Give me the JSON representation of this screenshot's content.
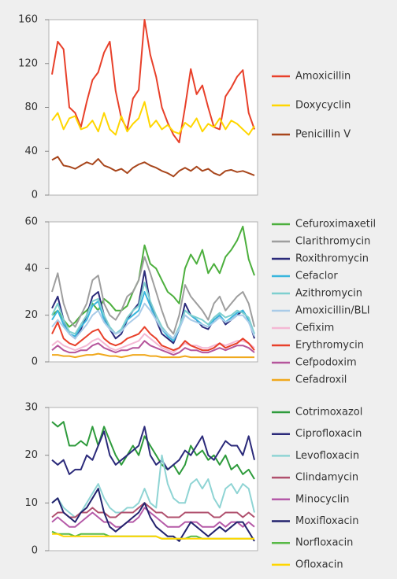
{
  "chart_data": [
    {
      "type": "line",
      "legend": "right",
      "categories": [
        null,
        null,
        null,
        null,
        null,
        null,
        null,
        null,
        null,
        null,
        null,
        null,
        null,
        null,
        null,
        null,
        null,
        null,
        null,
        null,
        null,
        null,
        null,
        null,
        null,
        null,
        null,
        null,
        null,
        null,
        null,
        null,
        null,
        null,
        null,
        null
      ],
      "ylim": [
        0,
        160
      ],
      "yticks": [
        0,
        40,
        80,
        120,
        160
      ],
      "series": [
        {
          "name": "Amoxicillin",
          "color": "#e8402a",
          "values": [
            110,
            140,
            133,
            80,
            75,
            62,
            85,
            105,
            112,
            130,
            140,
            95,
            70,
            60,
            88,
            96,
            160,
            128,
            108,
            80,
            66,
            55,
            48,
            80,
            115,
            92,
            100,
            80,
            62,
            60,
            90,
            98,
            108,
            114,
            75,
            60
          ]
        },
        {
          "name": "Doxycyclin",
          "color": "#ffd600",
          "values": [
            68,
            75,
            60,
            70,
            72,
            60,
            62,
            68,
            58,
            75,
            60,
            55,
            72,
            58,
            65,
            70,
            85,
            62,
            68,
            60,
            64,
            58,
            56,
            66,
            62,
            70,
            58,
            65,
            62,
            70,
            60,
            68,
            65,
            60,
            55,
            63
          ]
        },
        {
          "name": "Penicillin V",
          "color": "#a8461c",
          "values": [
            32,
            35,
            27,
            26,
            24,
            27,
            30,
            28,
            33,
            27,
            25,
            22,
            24,
            20,
            25,
            28,
            30,
            27,
            25,
            22,
            20,
            17,
            22,
            25,
            22,
            26,
            22,
            24,
            20,
            18,
            22,
            23,
            21,
            22,
            20,
            18
          ]
        }
      ]
    },
    {
      "type": "line",
      "legend": "right",
      "categories": [
        null,
        null,
        null,
        null,
        null,
        null,
        null,
        null,
        null,
        null,
        null,
        null,
        null,
        null,
        null,
        null,
        null,
        null,
        null,
        null,
        null,
        null,
        null,
        null,
        null,
        null,
        null,
        null,
        null,
        null,
        null,
        null,
        null,
        null,
        null,
        null
      ],
      "ylim": [
        0,
        60
      ],
      "yticks": [
        0,
        20,
        40,
        60
      ],
      "series": [
        {
          "name": "Cefuroximaxetil",
          "color": "#4caf3d",
          "values": [
            20,
            22,
            18,
            15,
            17,
            20,
            22,
            25,
            22,
            27,
            25,
            22,
            22,
            24,
            30,
            35,
            50,
            42,
            40,
            35,
            30,
            28,
            25,
            40,
            46,
            42,
            48,
            38,
            42,
            38,
            45,
            48,
            52,
            58,
            44,
            37
          ]
        },
        {
          "name": "Clarithromycin",
          "color": "#9e9e9e",
          "values": [
            30,
            38,
            25,
            18,
            15,
            20,
            25,
            35,
            37,
            25,
            20,
            18,
            22,
            28,
            30,
            35,
            45,
            38,
            30,
            22,
            15,
            12,
            20,
            33,
            28,
            25,
            22,
            18,
            25,
            28,
            22,
            25,
            28,
            30,
            25,
            15
          ]
        },
        {
          "name": "Roxithromycin",
          "color": "#2b2a7a",
          "values": [
            23,
            28,
            18,
            12,
            10,
            14,
            20,
            28,
            30,
            20,
            14,
            10,
            12,
            18,
            22,
            25,
            39,
            25,
            18,
            12,
            10,
            8,
            14,
            25,
            20,
            18,
            15,
            14,
            18,
            20,
            16,
            18,
            20,
            22,
            18,
            10
          ]
        },
        {
          "name": "Cefaclor",
          "color": "#39b6dd",
          "values": [
            18,
            22,
            16,
            12,
            11,
            15,
            18,
            24,
            26,
            18,
            14,
            12,
            14,
            18,
            20,
            22,
            30,
            24,
            18,
            14,
            11,
            9,
            14,
            22,
            20,
            18,
            16,
            15,
            18,
            20,
            17,
            19,
            21,
            22,
            18,
            12
          ]
        },
        {
          "name": "Azithromycin",
          "color": "#7ecfcf",
          "values": [
            20,
            25,
            18,
            13,
            12,
            16,
            20,
            26,
            27,
            20,
            15,
            12,
            14,
            19,
            22,
            24,
            34,
            26,
            20,
            15,
            12,
            10,
            15,
            22,
            20,
            19,
            18,
            16,
            19,
            21,
            19,
            20,
            22,
            21,
            19,
            12
          ]
        },
        {
          "name": "Amoxicillin/BLI",
          "color": "#a9cbe8",
          "values": [
            15,
            18,
            15,
            12,
            10,
            13,
            16,
            20,
            22,
            17,
            14,
            12,
            13,
            16,
            18,
            20,
            25,
            22,
            18,
            14,
            12,
            10,
            14,
            20,
            18,
            17,
            16,
            15,
            17,
            19,
            17,
            18,
            20,
            20,
            17,
            11
          ]
        },
        {
          "name": "Cefixim",
          "color": "#f4b8d4",
          "values": [
            7,
            9,
            7,
            6,
            5,
            6,
            7,
            9,
            10,
            8,
            6,
            5,
            6,
            7,
            8,
            9,
            12,
            10,
            8,
            6,
            5,
            4,
            6,
            8,
            7,
            7,
            6,
            6,
            7,
            8,
            7,
            8,
            9,
            9,
            8,
            6
          ]
        },
        {
          "name": "Erythromycin",
          "color": "#e8402a",
          "values": [
            12,
            17,
            10,
            8,
            7,
            9,
            11,
            13,
            14,
            10,
            8,
            7,
            8,
            10,
            11,
            12,
            15,
            12,
            10,
            7,
            6,
            5,
            6,
            9,
            7,
            6,
            5,
            5,
            6,
            8,
            6,
            7,
            8,
            10,
            8,
            5
          ]
        },
        {
          "name": "Cefpodoxim",
          "color": "#b5559b",
          "values": [
            5,
            7,
            5,
            4,
            4,
            5,
            5,
            7,
            8,
            6,
            5,
            4,
            5,
            5,
            6,
            6,
            9,
            7,
            6,
            5,
            4,
            3,
            4,
            6,
            5,
            5,
            4,
            4,
            5,
            6,
            5,
            6,
            7,
            7,
            6,
            4
          ]
        },
        {
          "name": "Cefadroxil",
          "color": "#f0a81c",
          "values": [
            3,
            3,
            2.5,
            2.5,
            2,
            2.5,
            3,
            3,
            3.5,
            3,
            2.5,
            2.5,
            2,
            2.5,
            3,
            3,
            3,
            2.5,
            2.5,
            2,
            2,
            2,
            2,
            2.5,
            2,
            2,
            2,
            2,
            2,
            2,
            2,
            2,
            2,
            2,
            2,
            2
          ]
        }
      ]
    },
    {
      "type": "line",
      "legend": "right",
      "categories": [
        null,
        null,
        null,
        null,
        null,
        null,
        null,
        null,
        null,
        null,
        null,
        null,
        null,
        null,
        null,
        null,
        null,
        null,
        null,
        null,
        null,
        null,
        null,
        null,
        null,
        null,
        null,
        null,
        null,
        null,
        null,
        null,
        null,
        null,
        null,
        null
      ],
      "ylim": [
        0,
        30
      ],
      "yticks": [
        0,
        10,
        20,
        30
      ],
      "series": [
        {
          "name": "Cotrimoxazol",
          "color": "#2e9b3c",
          "values": [
            27,
            26,
            27,
            22,
            22,
            23,
            22,
            26,
            22,
            26,
            23,
            20,
            18,
            20,
            22,
            20,
            24,
            22,
            20,
            18,
            17,
            18,
            16,
            18,
            22,
            20,
            21,
            19,
            20,
            18,
            20,
            17,
            18,
            16,
            17,
            15
          ]
        },
        {
          "name": "Ciprofloxacin",
          "color": "#2b2a7a",
          "values": [
            19,
            18,
            19,
            16,
            17,
            17,
            20,
            19,
            22,
            25,
            20,
            18,
            19,
            20,
            21,
            22,
            26,
            20,
            18,
            19,
            17,
            18,
            19,
            21,
            20,
            22,
            24,
            20,
            19,
            21,
            23,
            22,
            22,
            20,
            24,
            19
          ]
        },
        {
          "name": "Levofloxacin",
          "color": "#8fd4d4",
          "values": [
            10,
            11,
            9,
            8,
            7,
            8,
            10,
            12,
            14,
            11,
            9,
            8,
            8,
            9,
            9,
            10,
            13,
            10,
            9,
            20,
            14,
            11,
            10,
            10,
            14,
            15,
            13,
            15,
            11,
            9,
            13,
            14,
            12,
            14,
            13,
            8
          ]
        },
        {
          "name": "Clindamycin",
          "color": "#b0506e",
          "values": [
            7,
            8,
            8,
            7,
            7,
            8,
            8,
            9,
            8,
            8,
            7,
            7,
            8,
            8,
            8,
            9,
            10,
            9,
            8,
            8,
            7,
            7,
            7,
            8,
            8,
            8,
            8,
            8,
            7,
            7,
            8,
            8,
            8,
            7,
            8,
            7
          ]
        },
        {
          "name": "Minocyclin",
          "color": "#b55aa8",
          "values": [
            6,
            7,
            6,
            5,
            5,
            6,
            7,
            8,
            7,
            6,
            6,
            5,
            5,
            6,
            6,
            7,
            9,
            8,
            7,
            6,
            5,
            5,
            5,
            6,
            6,
            6,
            5,
            5,
            5,
            6,
            5,
            6,
            6,
            5,
            6,
            5
          ]
        },
        {
          "name": "Moxifloxacin",
          "color": "#23236e",
          "values": [
            10,
            11,
            8,
            7,
            6,
            8,
            9,
            11,
            13,
            8,
            5,
            4,
            5,
            6,
            7,
            8,
            10,
            7,
            5,
            4,
            3,
            3,
            2,
            4,
            6,
            5,
            4,
            3,
            4,
            5,
            4,
            5,
            6,
            6,
            4,
            2
          ]
        },
        {
          "name": "Norfloxacin",
          "color": "#58b947",
          "values": [
            4,
            3.5,
            3.5,
            3.5,
            3,
            3.5,
            3.5,
            3.5,
            3.5,
            3.5,
            3,
            3,
            3,
            3,
            3,
            3,
            3,
            3,
            3,
            2.5,
            2.5,
            2.5,
            2.5,
            2.5,
            3,
            3,
            2.5,
            2.5,
            2.5,
            2.5,
            2.5,
            2.5,
            2.5,
            2.5,
            2.5,
            2.5
          ]
        },
        {
          "name": "Ofloxacin",
          "color": "#ffd600",
          "values": [
            3.5,
            3.5,
            3,
            3,
            3,
            3,
            3,
            3,
            3,
            3,
            3,
            3,
            3,
            3,
            3,
            3,
            3,
            3,
            3,
            2.5,
            2.5,
            2.5,
            2.5,
            2.5,
            2.5,
            2.5,
            2.5,
            2.5,
            2.5,
            2.5,
            2.5,
            2.5,
            2.5,
            2.5,
            2.5,
            2.5
          ]
        }
      ]
    }
  ]
}
